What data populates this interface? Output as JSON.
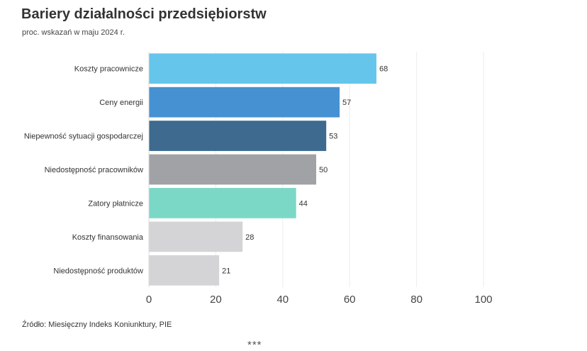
{
  "chart_data": {
    "type": "bar",
    "orientation": "horizontal",
    "title": "Bariery działalności przedsiębiorstw",
    "subtitle": "proc. wskazań w maju 2024 r.",
    "categories": [
      "Koszty pracownicze",
      "Ceny energii",
      "Niepewność sytuacji gospodarczej",
      "Niedostępność pracowników",
      "Zatory płatnicze",
      "Koszty finansowania",
      "Niedostępność produktów"
    ],
    "values": [
      68,
      57,
      53,
      50,
      44,
      28,
      21
    ],
    "colors": [
      "#66c5ea",
      "#4691d1",
      "#3d6a8e",
      "#a1a2a6",
      "#7bd8c6",
      "#d4d4d6",
      "#d4d4d6"
    ],
    "xlim": [
      0,
      100
    ],
    "xticks": [
      0,
      20,
      40,
      60,
      80,
      100
    ],
    "grid": true,
    "xlabel": "",
    "ylabel": ""
  },
  "source": "Źródło: Miesięczny Indeks Koniunktury, PIE",
  "footer_mark": "***"
}
